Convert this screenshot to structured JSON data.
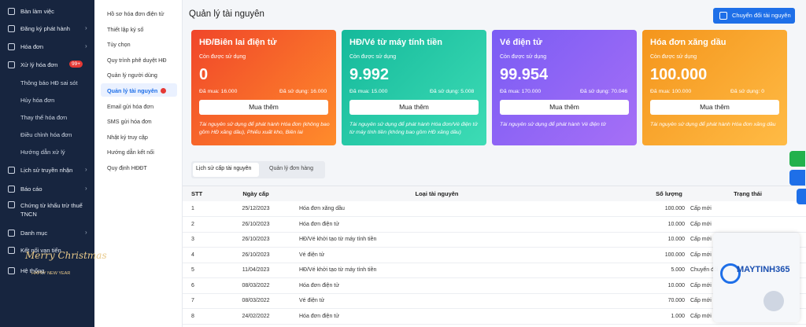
{
  "sidebar": {
    "items": [
      {
        "label": "Bàn làm việc"
      },
      {
        "label": "Đăng ký phát hành"
      },
      {
        "label": "Hóa đơn"
      },
      {
        "label": "Xử lý hóa đơn",
        "badge": "99+",
        "children": [
          "Thông báo HĐ sai sót",
          "Hủy hóa đơn",
          "Thay thế hóa đơn",
          "Điều chỉnh hóa đơn",
          "Hướng dẫn xử lý"
        ]
      },
      {
        "label": "Lịch sử truyền nhận"
      },
      {
        "label": "Báo cáo"
      },
      {
        "label": "Chứng từ khấu trừ thuế TNCN"
      },
      {
        "label": "Danh mục"
      },
      {
        "label": "Kết nối vạn tiến"
      },
      {
        "label": "Hệ thống"
      }
    ],
    "decoration": {
      "line1": "Merry Christmas",
      "line2": "HAPPY NEW YEAR"
    }
  },
  "settings_menu": [
    "Hồ sơ hóa đơn điện tử",
    "Thiết lập ký số",
    "Tùy chọn",
    "Quy trình phê duyệt HĐ",
    "Quản lý người dùng",
    "Quản lý tài nguyên",
    "Email gửi hóa đơn",
    "SMS gửi hóa đơn",
    "Nhật ký truy cập",
    "Hướng dẫn kết nối",
    "Quy định HĐĐT"
  ],
  "header": {
    "title": "Quản lý tài nguyên",
    "button": "Chuyển đổi tài nguyên"
  },
  "cards": [
    {
      "title": "HĐ/Biên lai điện tử",
      "remaining_label": "Còn được sử dụng",
      "remaining": "0",
      "bought": "Đã mua: 16.000",
      "used": "Đã sử dụng: 16.000",
      "button": "Mua thêm",
      "note": "Tài nguyên sử dụng để phát hành Hóa đơn (không bao gồm HĐ xăng dầu), Phiếu xuất kho, Biên lai"
    },
    {
      "title": "HĐ/Vé từ máy tính tiền",
      "remaining_label": "Còn được sử dụng",
      "remaining": "9.992",
      "bought": "Đã mua: 15.000",
      "used": "Đã sử dụng: 5.008",
      "button": "Mua thêm",
      "note": "Tài nguyên sử dụng để phát hành Hóa đơn/Vé điện tử từ máy tính tiền (không bao gồm HĐ xăng dầu)"
    },
    {
      "title": "Vé điện tử",
      "remaining_label": "Còn được sử dụng",
      "remaining": "99.954",
      "bought": "Đã mua: 170.000",
      "used": "Đã sử dụng: 70.046",
      "button": "Mua thêm",
      "note": "Tài nguyên sử dụng để phát hành Vé điện tử"
    },
    {
      "title": "Hóa đơn xăng dầu",
      "remaining_label": "Còn được sử dụng",
      "remaining": "100.000",
      "bought": "Đã mua: 100.000",
      "used": "Đã sử dụng: 0",
      "button": "Mua thêm",
      "note": "Tài nguyên sử dụng để phát hành Hóa đơn xăng dầu"
    }
  ],
  "tabs": [
    "Lịch sử cấp tài nguyên",
    "Quản lý đơn hàng"
  ],
  "table": {
    "columns": [
      "STT",
      "Ngày cấp",
      "Loại tài nguyên",
      "Số lượng",
      "Trạng thái"
    ],
    "rows": [
      [
        "1",
        "25/12/2023",
        "Hóa đơn xăng dầu",
        "100.000",
        "Cấp mới"
      ],
      [
        "2",
        "26/10/2023",
        "Hóa đơn điện tử",
        "10.000",
        "Cấp mới"
      ],
      [
        "3",
        "26/10/2023",
        "HĐ/Vé khởi tạo từ máy tính tiền",
        "10.000",
        "Cấp mới"
      ],
      [
        "4",
        "26/10/2023",
        "Vé điện tử",
        "100.000",
        "Cấp mới"
      ],
      [
        "5",
        "11/04/2023",
        "HĐ/Vé khởi tạo từ máy tính tiền",
        "5.000",
        "Chuyển đổi"
      ],
      [
        "6",
        "08/03/2022",
        "Hóa đơn điện tử",
        "10.000",
        "Cấp mới"
      ],
      [
        "7",
        "08/03/2022",
        "Vé điện tử",
        "70.000",
        "Cấp mới"
      ],
      [
        "8",
        "24/02/2022",
        "Hóa đơn điện tử",
        "1.000",
        "Cấp mới"
      ]
    ]
  },
  "chat_widget": {
    "brand": "MAYTINH365"
  }
}
